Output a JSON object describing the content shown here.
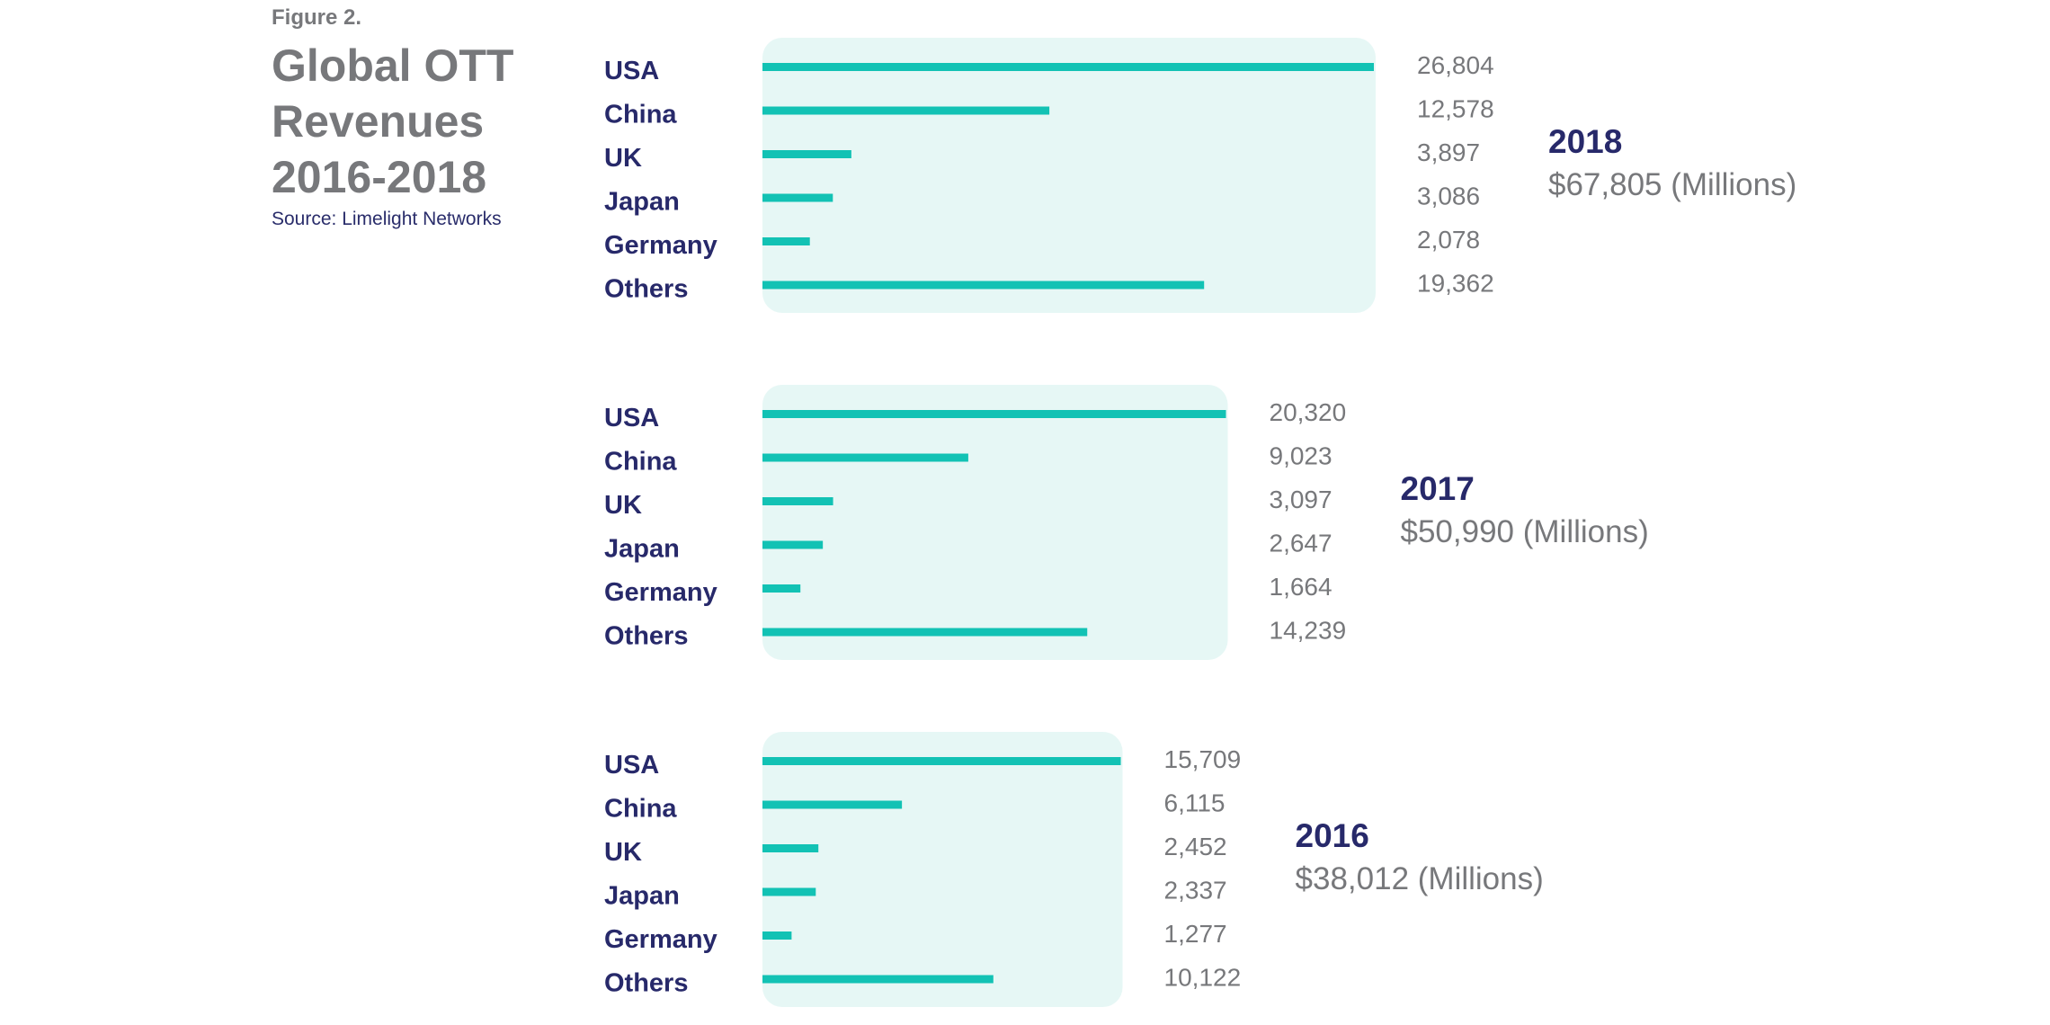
{
  "figure_label": "Figure 2.",
  "title": "Global OTT Revenues 2016-2018",
  "source": "Source: Limelight Networks",
  "colors": {
    "bar": "#12c2b4",
    "panel": "#e6f7f5",
    "label": "#27296a",
    "value": "#77787b"
  },
  "chart_data": [
    {
      "type": "bar",
      "year": "2018",
      "total": "$67,805 (Millions)",
      "categories": [
        "USA",
        "China",
        "UK",
        "Japan",
        "Germany",
        "Others"
      ],
      "values": [
        26804,
        12578,
        3897,
        3086,
        2078,
        19362
      ],
      "value_labels": [
        "26,804",
        "12,578",
        "3,897",
        "3,086",
        "2,078",
        "19,362"
      ]
    },
    {
      "type": "bar",
      "year": "2017",
      "total": "$50,990 (Millions)",
      "categories": [
        "USA",
        "China",
        "UK",
        "Japan",
        "Germany",
        "Others"
      ],
      "values": [
        20320,
        9023,
        3097,
        2647,
        1664,
        14239
      ],
      "value_labels": [
        "20,320",
        "9,023",
        "3,097",
        "2,647",
        "1,664",
        "14,239"
      ]
    },
    {
      "type": "bar",
      "year": "2016",
      "total": "$38,012 (Millions)",
      "categories": [
        "USA",
        "China",
        "UK",
        "Japan",
        "Germany",
        "Others"
      ],
      "values": [
        15709,
        6115,
        2452,
        2337,
        1277,
        10122
      ],
      "value_labels": [
        "15,709",
        "6,115",
        "2,452",
        "2,337",
        "1,277",
        "10,122"
      ]
    }
  ]
}
